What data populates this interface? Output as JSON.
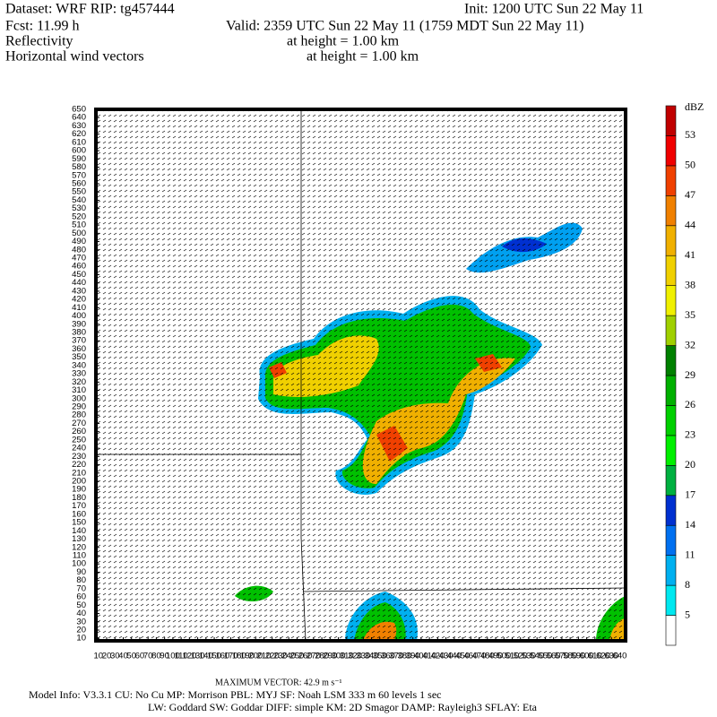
{
  "header": {
    "dataset": "Dataset: WRF  RIP: tg457444",
    "init": "Init: 1200 UTC Sun 22 May 11",
    "fcst": "Fcst:   11.99 h",
    "valid": "Valid: 2359 UTC Sun 22 May 11 (1759 MDT Sun 22 May 11)",
    "field1": "Reflectivity",
    "height1": "at height =  1.00 km",
    "field2": "Horizontal wind vectors",
    "height2": "at height =  1.00 km"
  },
  "chart_data": {
    "type": "map",
    "xlim": [
      7,
      647
    ],
    "ylim": [
      7,
      650
    ],
    "yticks": [
      10,
      20,
      30,
      40,
      50,
      60,
      70,
      80,
      90,
      100,
      110,
      120,
      130,
      140,
      150,
      160,
      170,
      180,
      190,
      200,
      210,
      220,
      230,
      240,
      250,
      260,
      270,
      280,
      290,
      300,
      310,
      320,
      330,
      340,
      350,
      360,
      370,
      380,
      390,
      400,
      410,
      420,
      430,
      440,
      450,
      460,
      470,
      480,
      490,
      500,
      510,
      520,
      530,
      540,
      550,
      560,
      570,
      580,
      590,
      600,
      610,
      620,
      630,
      640,
      650
    ],
    "xticks": [
      10,
      20,
      30,
      40,
      50,
      60,
      70,
      80,
      90,
      100,
      110,
      120,
      130,
      140,
      150,
      160,
      170,
      180,
      190,
      200,
      210,
      220,
      230,
      240,
      250,
      260,
      270,
      280,
      290,
      300,
      310,
      320,
      330,
      340,
      350,
      360,
      370,
      380,
      390,
      400,
      410,
      420,
      430,
      440,
      450,
      460,
      470,
      480,
      490,
      500,
      510,
      520,
      530,
      540,
      550,
      560,
      570,
      580,
      590,
      600,
      610,
      620,
      630,
      640
    ],
    "colorbar": {
      "unit": "dBZ",
      "levels": [
        5,
        8,
        11,
        14,
        17,
        20,
        23,
        26,
        29,
        32,
        35,
        38,
        41,
        44,
        47,
        50,
        53
      ],
      "colors": [
        "#ffffff",
        "#00e8f0",
        "#00b0f0",
        "#0070f0",
        "#0030d0",
        "#00b040",
        "#00f000",
        "#00d000",
        "#00b000",
        "#008000",
        "#a0d000",
        "#f0f000",
        "#f0d000",
        "#f0b000",
        "#f08000",
        "#f04000",
        "#f00000",
        "#c00000"
      ]
    }
  },
  "footer": {
    "max_vector": "MAXIMUM VECTOR:  42.9 m s⁻¹",
    "model_info": "Model Info: V3.3.1    CU: No Cu    MP: Morrison     PBL: MYJ       SF: Noah LSM     333 m    60 levels     1 sec",
    "model_info2": "LW: Goddard  SW: Goddar  DIFF: simple  KM: 2D Smagor  DAMP: Rayleigh3   SFLAY: Eta"
  }
}
